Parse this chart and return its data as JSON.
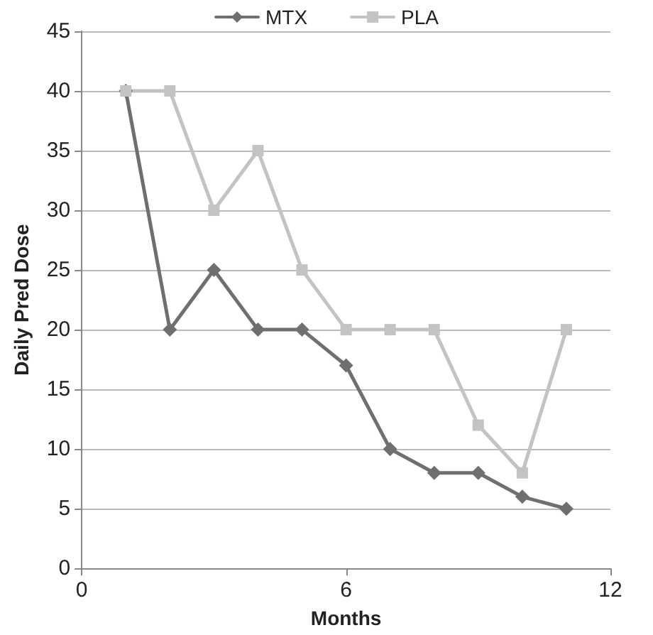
{
  "chart_data": {
    "type": "line",
    "xlabel": "Months",
    "ylabel": "Daily Pred Dose",
    "x": [
      1,
      2,
      3,
      4,
      5,
      6,
      7,
      8,
      9,
      10,
      11
    ],
    "series": [
      {
        "name": "MTX",
        "color": "#6f6f6f",
        "marker": "diamond",
        "values": [
          40,
          20,
          25,
          20,
          20,
          17,
          10,
          8,
          8,
          6,
          5
        ]
      },
      {
        "name": "PLA",
        "color": "#c3c3c3",
        "marker": "square",
        "values": [
          40,
          40,
          30,
          35,
          25,
          20,
          20,
          20,
          12,
          8,
          20
        ]
      }
    ],
    "xlim": [
      0,
      12
    ],
    "xticks": [
      0,
      6,
      12
    ],
    "ylim": [
      0,
      45
    ],
    "yticks": [
      0,
      5,
      10,
      15,
      20,
      25,
      30,
      35,
      40,
      45
    ],
    "grid": "y",
    "legend": "top",
    "line_style": "solid"
  }
}
